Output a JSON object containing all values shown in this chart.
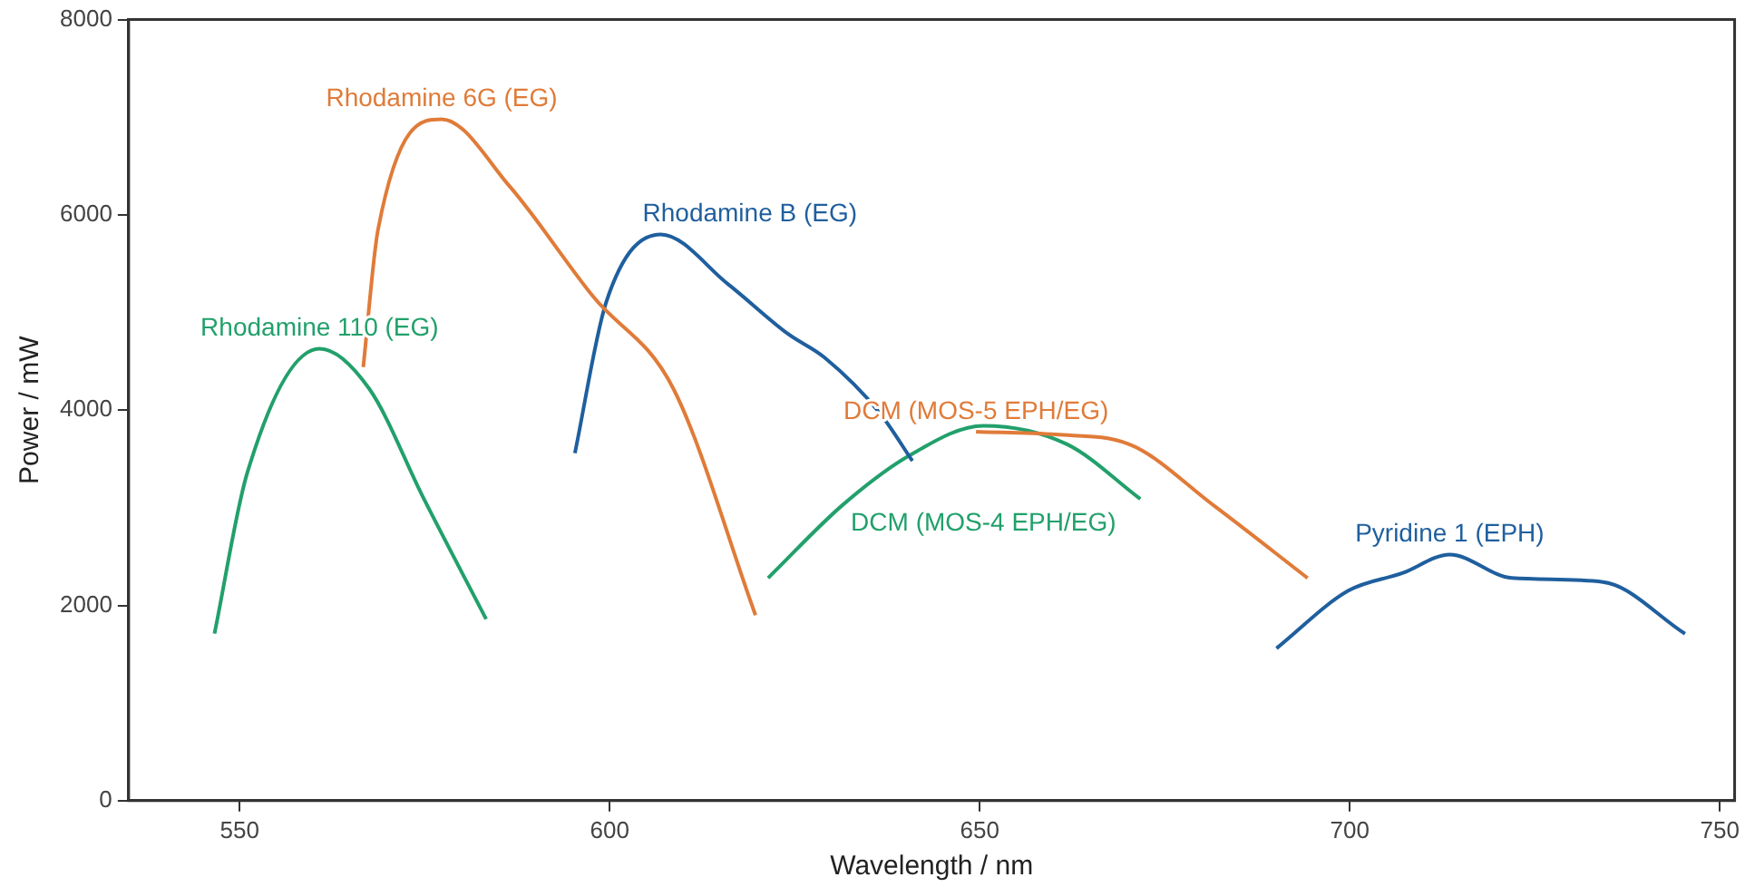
{
  "chart_data": {
    "type": "line",
    "xlabel": "Wavelength / nm",
    "ylabel": "Power / mW",
    "xlim": [
      535,
      752
    ],
    "xticks": [
      550,
      600,
      650,
      700,
      750
    ],
    "ylim": [
      0,
      8000
    ],
    "yticks": [
      0,
      2000,
      4000,
      6000,
      8000
    ],
    "grid": false,
    "legend": false,
    "series": [
      {
        "name": "Rhodamine 110 (EG)",
        "color": "#22a06b",
        "x": [
          546.6,
          551,
          560.8,
          567.5,
          574.9,
          583.3
        ],
        "values": [
          1710,
          3350,
          4630,
          4220,
          3090,
          1860
        ]
      },
      {
        "name": "Rhodamine 6G (EG)",
        "color": "#e07b39",
        "x": [
          566.7,
          568.7,
          577.3,
          586.5,
          597.8,
          608.6,
          619.7
        ],
        "values": [
          4440,
          5850,
          6980,
          6290,
          5160,
          4220,
          1900
        ]
      },
      {
        "name": "Rhodamine B (EG)",
        "color": "#1f5f9e",
        "x": [
          595.3,
          599.5,
          606.9,
          616,
          624.1,
          629,
          636.5,
          640.9
        ],
        "values": [
          3560,
          5100,
          5800,
          5290,
          4780,
          4540,
          3970,
          3480
        ]
      },
      {
        "name": "DCM (MOS-5 EPH/EG)",
        "color": "#e07b39",
        "x": [
          649.5,
          660.3,
          670.2,
          681.5,
          694.3
        ],
        "values": [
          3780,
          3750,
          3650,
          3030,
          2280
        ]
      },
      {
        "name": "DCM (MOS-4 EPH/EG)",
        "color": "#22a06b",
        "x": [
          621.4,
          631.5,
          640.6,
          650.5,
          661.8,
          671.7
        ],
        "values": [
          2280,
          3030,
          3540,
          3840,
          3650,
          3090
        ]
      },
      {
        "name": "Pyridine 1 (EPH)",
        "color": "#1f5f9e",
        "x": [
          690.1,
          699.8,
          707.1,
          713.5,
          721.9,
          734.2,
          745.3
        ],
        "values": [
          1560,
          2150,
          2330,
          2520,
          2280,
          2240,
          1710
        ]
      }
    ]
  }
}
